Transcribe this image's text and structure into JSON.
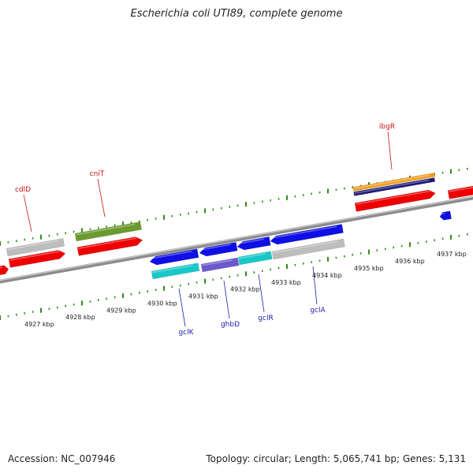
{
  "title": "Escherichia coli UTI89, complete genome",
  "footer": {
    "accession": "Accession: NC_007946",
    "summary": "Topology: circular; Length: 5,065,741 bp; Genes: 5,131"
  },
  "colors": {
    "backbone": "#8c8c8c",
    "tick": "#2e8b1e",
    "cds_red": "#ee0000",
    "blue": "#0f0fe6",
    "cyan": "#18c8c8",
    "gray": "#bdbdbd",
    "olive": "#6b9a2e",
    "orange": "#f59e1c",
    "navy": "#1a1a7a",
    "slate": "#6a5acd",
    "top_label": "#cc1111",
    "bottom_label": "#1a1ab0"
  },
  "axis_labels": [
    "4927 kbp",
    "4928 kbp",
    "4929 kbp",
    "4930 kbp",
    "4931 kbp",
    "4932 kbp",
    "4933 kbp",
    "4934 kbp",
    "4935 kbp",
    "4936 kbp",
    "4937 kbp"
  ],
  "gene_labels_top": [
    "cdlD",
    "cniT",
    "ibgR"
  ],
  "gene_labels_bottom": [
    "gclK",
    "ghbD",
    "gclR",
    "gclA"
  ]
}
